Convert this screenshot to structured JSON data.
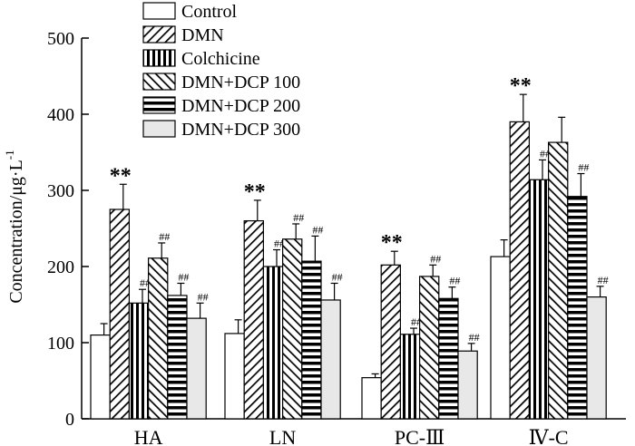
{
  "chart_data": {
    "type": "bar",
    "title": "",
    "xlabel": "",
    "ylabel": "Concentration/μg·L",
    "ylabel_superscript": "-1",
    "ylim": [
      0,
      500
    ],
    "yticks": [
      0,
      100,
      200,
      300,
      400,
      500
    ],
    "categories": [
      "HA",
      "LN",
      "PC-III",
      "IV-C"
    ],
    "category_labels": [
      "HA",
      "LN",
      "PC-Ⅲ",
      "Ⅳ-C"
    ],
    "series": [
      {
        "name": "Control",
        "pattern": "white",
        "values": [
          110,
          112,
          54,
          213
        ],
        "errors": [
          15,
          18,
          5,
          22
        ],
        "annotations": [
          "",
          "",
          "",
          ""
        ]
      },
      {
        "name": "DMN",
        "pattern": "diag-right",
        "values": [
          275,
          260,
          202,
          390
        ],
        "errors": [
          33,
          27,
          18,
          36
        ],
        "annotations": [
          "**",
          "**",
          "**",
          "**"
        ]
      },
      {
        "name": "Colchicine",
        "pattern": "vertical",
        "values": [
          152,
          200,
          111,
          314
        ],
        "errors": [
          18,
          22,
          8,
          26
        ],
        "annotations": [
          "##",
          "##",
          "##",
          "##"
        ]
      },
      {
        "name": "DMN+DCP 100",
        "pattern": "diag-left",
        "values": [
          211,
          236,
          187,
          363
        ],
        "errors": [
          20,
          20,
          15,
          33
        ],
        "annotations": [
          "##",
          "##",
          "##",
          ""
        ]
      },
      {
        "name": "DMN+DCP 200",
        "pattern": "horizontal",
        "values": [
          162,
          207,
          158,
          292
        ],
        "errors": [
          16,
          33,
          15,
          30
        ],
        "annotations": [
          "##",
          "##",
          "##",
          "##"
        ]
      },
      {
        "name": "DMN+DCP 300",
        "pattern": "gray",
        "values": [
          132,
          156,
          89,
          160
        ],
        "errors": [
          20,
          22,
          10,
          14
        ],
        "annotations": [
          "##",
          "##",
          "##",
          "##"
        ]
      }
    ],
    "legend_position": "top-center",
    "grid": false
  },
  "colors": {
    "axis": "#000000",
    "bar_fill_white": "#ffffff",
    "bar_fill_gray": "#e8e8e8",
    "pattern_stroke": "#000000"
  }
}
